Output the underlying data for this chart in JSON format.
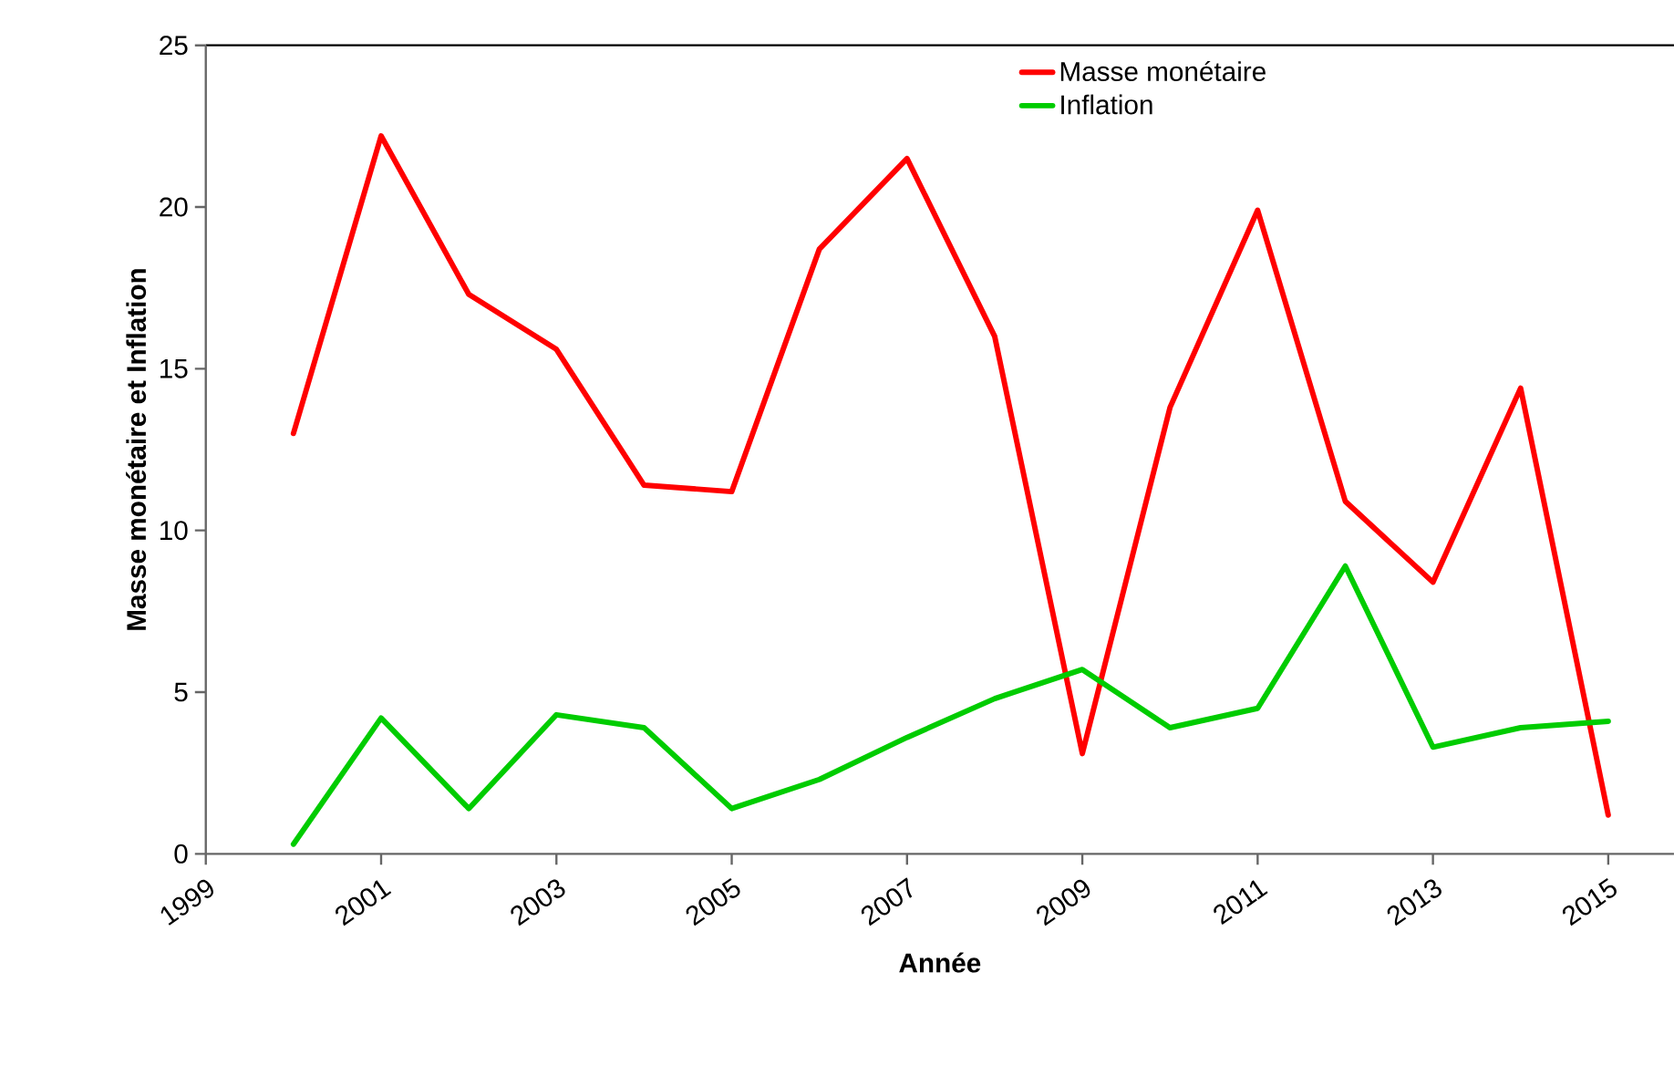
{
  "chart_data": {
    "type": "line",
    "xlabel": "Année",
    "ylabel": "Masse monétaire  et Inflation",
    "x": [
      2000,
      2001,
      2002,
      2003,
      2004,
      2005,
      2006,
      2007,
      2008,
      2009,
      2010,
      2011,
      2012,
      2013,
      2014,
      2015
    ],
    "series": [
      {
        "name": "Masse monétaire",
        "color": "#ff0000",
        "values": [
          13.0,
          22.2,
          17.3,
          15.6,
          11.4,
          11.2,
          18.7,
          21.5,
          16.0,
          3.1,
          13.8,
          19.9,
          10.9,
          8.4,
          14.4,
          1.2
        ]
      },
      {
        "name": "Inflation",
        "color": "#00cc00",
        "values": [
          0.3,
          4.2,
          1.4,
          4.3,
          3.9,
          1.4,
          2.3,
          3.6,
          4.8,
          5.7,
          3.9,
          4.5,
          8.9,
          3.3,
          3.9,
          4.1
        ]
      }
    ],
    "xlim": [
      1999,
      2015.75
    ],
    "xticks": [
      1999,
      2001,
      2003,
      2005,
      2007,
      2009,
      2011,
      2013,
      2015
    ],
    "ylim": [
      0,
      25
    ],
    "yticks": [
      0,
      5,
      10,
      15,
      20,
      25
    ],
    "grid": false,
    "legend": "top right",
    "marker": "none",
    "line_style": "solid"
  }
}
